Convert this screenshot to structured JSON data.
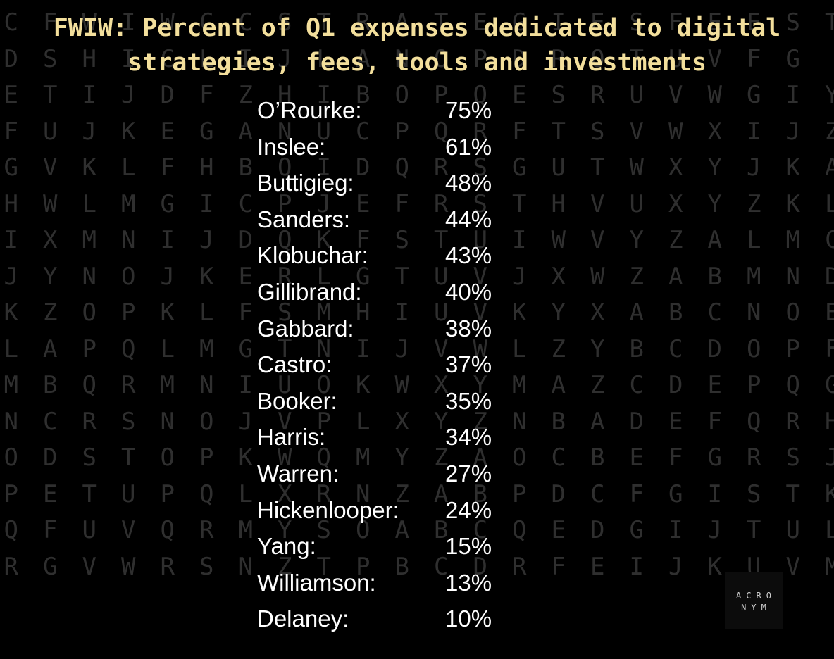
{
  "title": "FWIW: Percent of Q1 expenses dedicated to digital strategies, fees, tools and investments",
  "background_letters": [
    "CFWIWCCSTRATEGIESFEESTOOLS",
    "DSHICLIJLANOPDRQTUVFG",
    "ETIJDFZHIBOPQESRUVWGIY",
    "FUJKEGANUCPQRFTSVWXIJZ",
    "GVKLFHBOIDQRSGUTWXYJKA",
    "HWLMGICPJEFRSTHVUXYZKLB",
    "IXMNIJDQKFSTUIWVYZALMC",
    "JYNOJKERLGTUVJXWZABMND",
    "KZOPKLFSMHIUVKYXABCNOE",
    "LAPQLMGTNIJVWLZYBCDOPF",
    "MBQRMNIUOKWXYMAZCDEPQG",
    "NCRSNOJVPLXYZNBADEFQRH",
    "ODSTOPKWQMYZAOCBEFGRSJ",
    "PETUPQLXRNZABPDCFGISTK",
    "QFUVQRMYSOABCQEDGIJTUL",
    "RGVWRSNZTPBCDRFEIJKUVM"
  ],
  "logo": {
    "line1": "ACRO",
    "line2": "NYM"
  },
  "chart_data": {
    "type": "table",
    "title": "FWIW: Percent of Q1 expenses dedicated to digital strategies, fees, tools and investments",
    "rows": [
      {
        "label": "O’Rourke:",
        "value": 75,
        "display": "75%"
      },
      {
        "label": "Inslee:",
        "value": 61,
        "display": "61%"
      },
      {
        "label": "Buttigieg:",
        "value": 48,
        "display": "48%"
      },
      {
        "label": "Sanders:",
        "value": 44,
        "display": "44%"
      },
      {
        "label": "Klobuchar:",
        "value": 43,
        "display": "43%"
      },
      {
        "label": "Gillibrand:",
        "value": 40,
        "display": "40%"
      },
      {
        "label": "Gabbard:",
        "value": 38,
        "display": "38%"
      },
      {
        "label": "Castro:",
        "value": 37,
        "display": "37%"
      },
      {
        "label": "Booker:",
        "value": 35,
        "display": "35%"
      },
      {
        "label": "Harris:",
        "value": 34,
        "display": "34%"
      },
      {
        "label": "Warren:",
        "value": 27,
        "display": "27%"
      },
      {
        "label": "Hickenlooper:",
        "value": 24,
        "display": "24%"
      },
      {
        "label": "Yang:",
        "value": 15,
        "display": "15%"
      },
      {
        "label": "Williamson:",
        "value": 13,
        "display": "13%"
      },
      {
        "label": "Delaney:",
        "value": 10,
        "display": "10%"
      }
    ]
  },
  "colors": {
    "background": "#000000",
    "title": "#f3df9c",
    "text": "#ffffff",
    "background_letters": "#2f2f2f"
  }
}
